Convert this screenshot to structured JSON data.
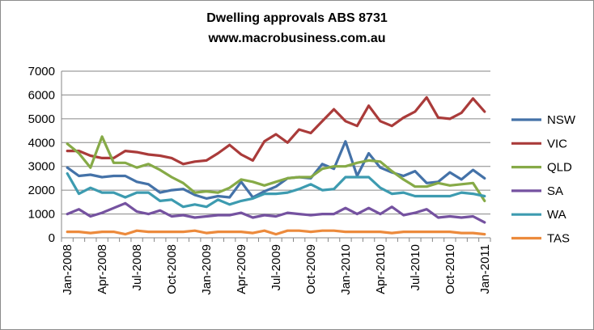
{
  "chart_data": {
    "type": "line",
    "title": "Dwelling approvals ABS 8731",
    "subtitle": "www.macrobusiness.com.au",
    "xlabel": "",
    "ylabel": "",
    "ylim": [
      0,
      7000
    ],
    "yticks": [
      "0",
      "1000",
      "2000",
      "3000",
      "4000",
      "5000",
      "6000",
      "7000"
    ],
    "grid": true,
    "legend_position": "right",
    "x": [
      "Jan-2008",
      "Feb-2008",
      "Mar-2008",
      "Apr-2008",
      "May-2008",
      "Jun-2008",
      "Jul-2008",
      "Aug-2008",
      "Sep-2008",
      "Oct-2008",
      "Nov-2008",
      "Dec-2008",
      "Jan-2009",
      "Feb-2009",
      "Mar-2009",
      "Apr-2009",
      "May-2009",
      "Jun-2009",
      "Jul-2009",
      "Aug-2009",
      "Sep-2009",
      "Oct-2009",
      "Nov-2009",
      "Dec-2009",
      "Jan-2010",
      "Feb-2010",
      "Mar-2010",
      "Apr-2010",
      "May-2010",
      "Jun-2010",
      "Jul-2010",
      "Aug-2010",
      "Sep-2010",
      "Oct-2010",
      "Nov-2010",
      "Dec-2010",
      "Jan-2011"
    ],
    "x_tick_labels": [
      "Jan-2008",
      "Apr-2008",
      "Jul-2008",
      "Oct-2008",
      "Jan-2009",
      "Apr-2009",
      "Jul-2009",
      "Oct-2009",
      "Jan-2010",
      "Apr-2010",
      "Jul-2010",
      "Oct-2010",
      "Jan-2011"
    ],
    "series": [
      {
        "name": "NSW",
        "color": "#4472a8",
        "values": [
          2950,
          2600,
          2650,
          2550,
          2600,
          2600,
          2350,
          2250,
          1900,
          2000,
          2050,
          1800,
          1650,
          1750,
          1700,
          2350,
          1700,
          1950,
          2150,
          2500,
          2550,
          2500,
          3100,
          2900,
          4050,
          2600,
          3550,
          2950,
          2750,
          2600,
          2800,
          2300,
          2350,
          2750,
          2450,
          2850,
          2500
        ]
      },
      {
        "name": "VIC",
        "color": "#aa3b3a",
        "values": [
          3650,
          3650,
          3450,
          3350,
          3350,
          3650,
          3600,
          3500,
          3450,
          3350,
          3100,
          3200,
          3250,
          3550,
          3900,
          3500,
          3250,
          4050,
          4350,
          4000,
          4550,
          4400,
          4900,
          5400,
          4900,
          4700,
          5550,
          4900,
          4700,
          5050,
          5300,
          5900,
          5050,
          5000,
          5250,
          5850,
          5300
        ]
      },
      {
        "name": "QLD",
        "color": "#86aa47",
        "values": [
          3950,
          3550,
          2950,
          4250,
          3150,
          3150,
          2950,
          3100,
          2850,
          2550,
          2300,
          1900,
          1950,
          1900,
          2100,
          2450,
          2350,
          2200,
          2350,
          2500,
          2550,
          2550,
          2900,
          3000,
          3000,
          3150,
          3250,
          3200,
          2800,
          2450,
          2150,
          2150,
          2300,
          2200,
          2250,
          2300,
          1550
        ]
      },
      {
        "name": "SA",
        "color": "#7552a0",
        "values": [
          1000,
          1200,
          900,
          1050,
          1250,
          1450,
          1100,
          1000,
          1150,
          900,
          950,
          850,
          900,
          950,
          950,
          1050,
          850,
          950,
          900,
          1050,
          1000,
          950,
          1000,
          1000,
          1250,
          1000,
          1250,
          1000,
          1300,
          950,
          1050,
          1200,
          850,
          900,
          850,
          900,
          650
        ]
      },
      {
        "name": "WA",
        "color": "#3d9bb0",
        "values": [
          2700,
          1850,
          2100,
          1900,
          1900,
          1700,
          1900,
          1900,
          1550,
          1600,
          1300,
          1400,
          1300,
          1600,
          1400,
          1550,
          1650,
          1850,
          1850,
          1900,
          2050,
          2250,
          2000,
          2050,
          2550,
          2550,
          2550,
          2100,
          1850,
          1900,
          1750,
          1750,
          1750,
          1750,
          1900,
          1850,
          1750
        ]
      },
      {
        "name": "TAS",
        "color": "#ec8a3c",
        "values": [
          250,
          250,
          200,
          250,
          250,
          150,
          300,
          250,
          250,
          250,
          250,
          300,
          200,
          250,
          250,
          250,
          200,
          300,
          150,
          300,
          300,
          250,
          300,
          300,
          250,
          250,
          250,
          250,
          200,
          250,
          250,
          250,
          250,
          250,
          200,
          200,
          150
        ]
      }
    ]
  }
}
